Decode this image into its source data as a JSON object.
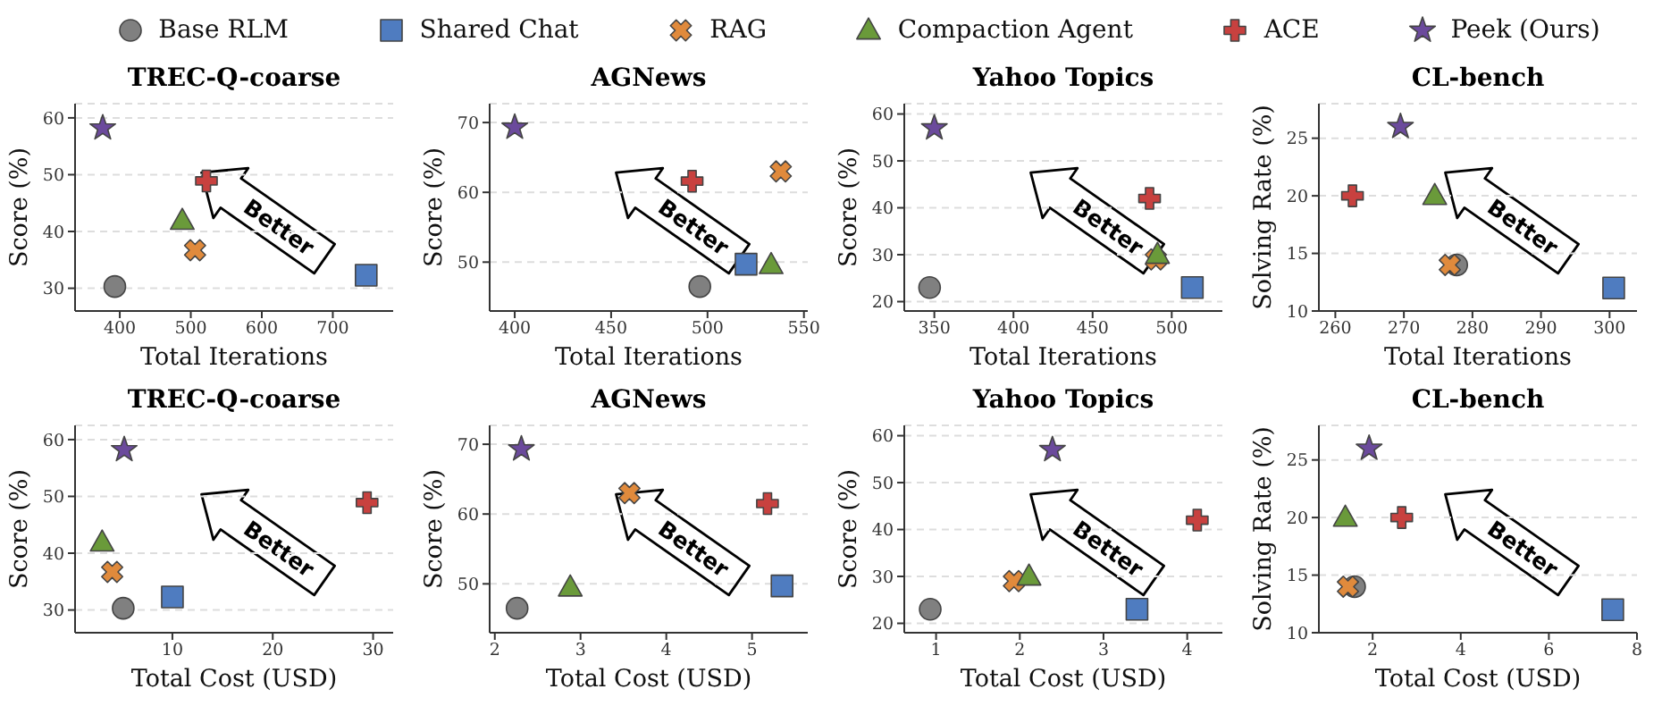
{
  "chart_data": [
    {
      "type": "scatter",
      "title": "TREC-Q-coarse",
      "xlabel": "Total Iterations",
      "ylabel": "Score (%)",
      "xlim": [
        337,
        785
      ],
      "xticks": [
        400,
        500,
        600,
        700
      ],
      "ylim": [
        26,
        62.5
      ],
      "yticks": [
        30,
        40,
        50,
        60
      ],
      "grid": "y",
      "legend": "top",
      "annotations": [
        "Better"
      ],
      "series": [
        {
          "name": "Base RLM",
          "color": "#808080",
          "marker": "circle",
          "x": [
            393
          ],
          "values": [
            30.3
          ]
        },
        {
          "name": "Shared Chat",
          "color": "#4f7cc0",
          "marker": "square",
          "x": [
            747
          ],
          "values": [
            32.3
          ]
        },
        {
          "name": "RAG",
          "color": "#e08a3c",
          "marker": "x",
          "x": [
            506
          ],
          "values": [
            36.7
          ]
        },
        {
          "name": "Compaction Agent",
          "color": "#6a9a3a",
          "marker": "triangle",
          "x": [
            488
          ],
          "values": [
            41.9
          ]
        },
        {
          "name": "ACE",
          "color": "#c8413f",
          "marker": "cross",
          "x": [
            522
          ],
          "values": [
            48.9
          ]
        },
        {
          "name": "Peek (Ours)",
          "color": "#6b4a9c",
          "marker": "star",
          "x": [
            376
          ],
          "values": [
            58.2
          ]
        }
      ]
    },
    {
      "type": "scatter",
      "title": "AGNews",
      "xlabel": "Total Iterations",
      "ylabel": "Score (%)",
      "xlim": [
        387,
        552
      ],
      "xticks": [
        400,
        450,
        500,
        550
      ],
      "ylim": [
        43,
        72.7
      ],
      "yticks": [
        50,
        60,
        70
      ],
      "grid": "y",
      "annotations": [
        "Better"
      ],
      "series": [
        {
          "color": "#808080",
          "marker": "circle",
          "x": [
            496
          ],
          "values": [
            46.5
          ]
        },
        {
          "color": "#4f7cc0",
          "marker": "square",
          "x": [
            520
          ],
          "values": [
            49.7
          ]
        },
        {
          "color": "#e08a3c",
          "marker": "x",
          "x": [
            538
          ],
          "values": [
            63
          ]
        },
        {
          "color": "#6a9a3a",
          "marker": "triangle",
          "x": [
            533
          ],
          "values": [
            49.6
          ]
        },
        {
          "color": "#c8413f",
          "marker": "cross",
          "x": [
            492
          ],
          "values": [
            61.6
          ]
        },
        {
          "color": "#6b4a9c",
          "marker": "star",
          "x": [
            400
          ],
          "values": [
            69.3
          ]
        }
      ]
    },
    {
      "type": "scatter",
      "title": "Yahoo Topics",
      "xlabel": "Total Iterations",
      "ylabel": "Score (%)",
      "xlim": [
        331,
        532
      ],
      "xticks": [
        350,
        400,
        450,
        500
      ],
      "ylim": [
        18,
        62.2
      ],
      "yticks": [
        20,
        30,
        40,
        50,
        60
      ],
      "grid": "y",
      "annotations": [
        "Better"
      ],
      "series": [
        {
          "color": "#808080",
          "marker": "circle",
          "x": [
            347
          ],
          "values": [
            23
          ]
        },
        {
          "color": "#4f7cc0",
          "marker": "square",
          "x": [
            513
          ],
          "values": [
            23
          ]
        },
        {
          "color": "#e08a3c",
          "marker": "x",
          "x": [
            490
          ],
          "values": [
            29
          ]
        },
        {
          "color": "#6a9a3a",
          "marker": "triangle",
          "x": [
            491
          ],
          "values": [
            30
          ]
        },
        {
          "color": "#c8413f",
          "marker": "cross",
          "x": [
            486
          ],
          "values": [
            42
          ]
        },
        {
          "color": "#6b4a9c",
          "marker": "star",
          "x": [
            350
          ],
          "values": [
            57
          ]
        }
      ]
    },
    {
      "type": "scatter",
      "title": "CL-bench",
      "xlabel": "Total Iterations",
      "ylabel": "Solving Rate (%)",
      "xlim": [
        257.6,
        304
      ],
      "xticks": [
        260,
        270,
        280,
        290,
        300
      ],
      "ylim": [
        10,
        28
      ],
      "yticks": [
        10,
        15,
        20,
        25
      ],
      "grid": "y",
      "annotations": [
        "Better"
      ],
      "series": [
        {
          "color": "#808080",
          "marker": "circle",
          "x": [
            277.7
          ],
          "values": [
            14
          ]
        },
        {
          "color": "#4f7cc0",
          "marker": "square",
          "x": [
            300.6
          ],
          "values": [
            12
          ]
        },
        {
          "color": "#e08a3c",
          "marker": "x",
          "x": [
            276.7
          ],
          "values": [
            14
          ]
        },
        {
          "color": "#6a9a3a",
          "marker": "triangle",
          "x": [
            274.5
          ],
          "values": [
            20
          ]
        },
        {
          "color": "#c8413f",
          "marker": "cross",
          "x": [
            262.5
          ],
          "values": [
            20
          ]
        },
        {
          "color": "#6b4a9c",
          "marker": "star",
          "x": [
            269.5
          ],
          "values": [
            26
          ]
        }
      ]
    },
    {
      "type": "scatter",
      "title": "TREC-Q-coarse",
      "xlabel": "Total Cost (USD)",
      "ylabel": "Score (%)",
      "xlim": [
        0.3,
        32
      ],
      "xticks": [
        10,
        20,
        30
      ],
      "ylim": [
        26,
        62.5
      ],
      "yticks": [
        30,
        40,
        50,
        60
      ],
      "grid": "y",
      "annotations": [
        "Better"
      ],
      "series": [
        {
          "color": "#808080",
          "marker": "circle",
          "x": [
            5.1
          ],
          "values": [
            30.3
          ]
        },
        {
          "color": "#4f7cc0",
          "marker": "square",
          "x": [
            10
          ],
          "values": [
            32.3
          ]
        },
        {
          "color": "#e08a3c",
          "marker": "x",
          "x": [
            4
          ],
          "values": [
            36.7
          ]
        },
        {
          "color": "#6a9a3a",
          "marker": "triangle",
          "x": [
            3
          ],
          "values": [
            41.9
          ]
        },
        {
          "color": "#c8413f",
          "marker": "cross",
          "x": [
            29.4
          ],
          "values": [
            48.9
          ]
        },
        {
          "color": "#6b4a9c",
          "marker": "star",
          "x": [
            5.2
          ],
          "values": [
            58.2
          ]
        }
      ]
    },
    {
      "type": "scatter",
      "title": "AGNews",
      "xlabel": "Total Cost (USD)",
      "ylabel": "Score (%)",
      "xlim": [
        1.94,
        5.65
      ],
      "xticks": [
        2,
        3,
        4,
        5
      ],
      "ylim": [
        43,
        72.7
      ],
      "yticks": [
        50,
        60,
        70
      ],
      "grid": "y",
      "annotations": [
        "Better"
      ],
      "series": [
        {
          "color": "#808080",
          "marker": "circle",
          "x": [
            2.26
          ],
          "values": [
            46.5
          ]
        },
        {
          "color": "#4f7cc0",
          "marker": "square",
          "x": [
            5.35
          ],
          "values": [
            49.7
          ]
        },
        {
          "color": "#e08a3c",
          "marker": "x",
          "x": [
            3.57
          ],
          "values": [
            63
          ]
        },
        {
          "color": "#6a9a3a",
          "marker": "triangle",
          "x": [
            2.88
          ],
          "values": [
            49.5
          ]
        },
        {
          "color": "#c8413f",
          "marker": "cross",
          "x": [
            5.18
          ],
          "values": [
            61.5
          ]
        },
        {
          "color": "#6b4a9c",
          "marker": "star",
          "x": [
            2.31
          ],
          "values": [
            69.3
          ]
        }
      ]
    },
    {
      "type": "scatter",
      "title": "Yahoo Topics",
      "xlabel": "Total Cost (USD)",
      "ylabel": "Score (%)",
      "xlim": [
        0.62,
        4.42
      ],
      "xticks": [
        1,
        2,
        3,
        4
      ],
      "ylim": [
        18,
        62.2
      ],
      "yticks": [
        20,
        30,
        40,
        50,
        60
      ],
      "grid": "y",
      "annotations": [
        "Better"
      ],
      "series": [
        {
          "color": "#808080",
          "marker": "circle",
          "x": [
            0.93
          ],
          "values": [
            23
          ]
        },
        {
          "color": "#4f7cc0",
          "marker": "square",
          "x": [
            3.4
          ],
          "values": [
            23
          ]
        },
        {
          "color": "#e08a3c",
          "marker": "x",
          "x": [
            1.93
          ],
          "values": [
            29
          ]
        },
        {
          "color": "#6a9a3a",
          "marker": "triangle",
          "x": [
            2.11
          ],
          "values": [
            30
          ]
        },
        {
          "color": "#c8413f",
          "marker": "cross",
          "x": [
            4.12
          ],
          "values": [
            42
          ]
        },
        {
          "color": "#6b4a9c",
          "marker": "star",
          "x": [
            2.39
          ],
          "values": [
            57
          ]
        }
      ]
    },
    {
      "type": "scatter",
      "title": "CL-bench",
      "xlabel": "Total Cost (USD)",
      "ylabel": "Solving Rate (%)",
      "xlim": [
        0.78,
        8
      ],
      "xticks": [
        2,
        4,
        6,
        8
      ],
      "ylim": [
        10,
        28
      ],
      "yticks": [
        10,
        15,
        20,
        25
      ],
      "grid": "y",
      "annotations": [
        "Better"
      ],
      "series": [
        {
          "color": "#808080",
          "marker": "circle",
          "x": [
            1.59
          ],
          "values": [
            14
          ]
        },
        {
          "color": "#4f7cc0",
          "marker": "square",
          "x": [
            7.45
          ],
          "values": [
            12
          ]
        },
        {
          "color": "#e08a3c",
          "marker": "x",
          "x": [
            1.44
          ],
          "values": [
            14
          ]
        },
        {
          "color": "#6a9a3a",
          "marker": "triangle",
          "x": [
            1.38
          ],
          "values": [
            20
          ]
        },
        {
          "color": "#c8413f",
          "marker": "cross",
          "x": [
            2.66
          ],
          "values": [
            20
          ]
        },
        {
          "color": "#6b4a9c",
          "marker": "star",
          "x": [
            1.92
          ],
          "values": [
            26
          ]
        }
      ]
    }
  ]
}
